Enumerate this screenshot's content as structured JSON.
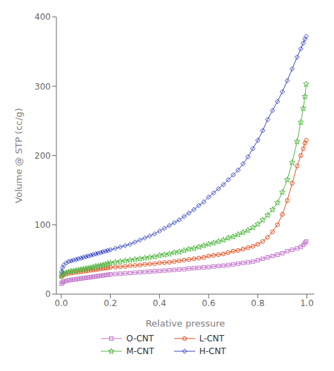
{
  "chart_data": {
    "type": "line",
    "xlabel": "Relative pressure",
    "ylabel": "Volume @ STP (cc/g)",
    "x": [
      0.001,
      0.005,
      0.01,
      0.02,
      0.03,
      0.04,
      0.05,
      0.06,
      0.07,
      0.08,
      0.09,
      0.1,
      0.11,
      0.12,
      0.13,
      0.14,
      0.15,
      0.16,
      0.17,
      0.18,
      0.19,
      0.2,
      0.22,
      0.24,
      0.26,
      0.28,
      0.3,
      0.32,
      0.34,
      0.36,
      0.38,
      0.4,
      0.42,
      0.44,
      0.46,
      0.48,
      0.5,
      0.52,
      0.54,
      0.56,
      0.58,
      0.6,
      0.62,
      0.64,
      0.66,
      0.68,
      0.7,
      0.72,
      0.74,
      0.76,
      0.78,
      0.8,
      0.82,
      0.84,
      0.86,
      0.88,
      0.9,
      0.92,
      0.94,
      0.96,
      0.975,
      0.985,
      0.992,
      0.997
    ],
    "xlim": [
      -0.02,
      1.03
    ],
    "xticks": [
      {
        "value": 0,
        "label": "0.0"
      },
      0.2,
      0.4,
      0.6,
      0.8,
      {
        "value": 1,
        "label": "1.0"
      }
    ],
    "ylim": [
      0,
      400
    ],
    "yticks": [
      0,
      100,
      200,
      300,
      400
    ],
    "grid": false,
    "legend": "bottom",
    "series": [
      {
        "name": "O-CNT",
        "color": "#c070c8",
        "marker": "square",
        "values": [
          15,
          17,
          18,
          19,
          20,
          20.5,
          21,
          21.5,
          22,
          22.5,
          23,
          23.5,
          24,
          24.5,
          25,
          25.5,
          26,
          26.5,
          27,
          27.5,
          28,
          28.5,
          29,
          29.5,
          30,
          30.5,
          31,
          31.5,
          32,
          32.5,
          33,
          33.5,
          34,
          34.5,
          35,
          35.5,
          36,
          37,
          37.5,
          38,
          38.5,
          39,
          40,
          40.5,
          41,
          42,
          43,
          44,
          45,
          46,
          47,
          49,
          51,
          53,
          55,
          57,
          59,
          62,
          64,
          66,
          68,
          71,
          74,
          76
        ]
      },
      {
        "name": "L-CNT",
        "color": "#e05020",
        "marker": "circle",
        "values": [
          25,
          27,
          28,
          29,
          30,
          30.5,
          31,
          31.5,
          32,
          32.5,
          33,
          33.5,
          34,
          34.5,
          35,
          35.5,
          36,
          36.5,
          37,
          37.5,
          38,
          38.5,
          39,
          39.5,
          40,
          41,
          41.5,
          42,
          43,
          43.5,
          44,
          45,
          45.5,
          46,
          47,
          48,
          49,
          50,
          51,
          52,
          53,
          55,
          56,
          57,
          58,
          60,
          62,
          63,
          65,
          67,
          69,
          72,
          76,
          82,
          90,
          100,
          115,
          135,
          160,
          185,
          200,
          210,
          218,
          222
        ]
      },
      {
        "name": "M-CNT",
        "color": "#50b840",
        "marker": "star",
        "values": [
          26,
          29,
          30,
          31,
          32,
          33,
          33.5,
          34,
          35,
          35.5,
          36,
          37,
          37.5,
          38,
          39,
          40,
          40.5,
          41,
          42,
          43,
          44,
          45,
          46,
          47,
          48,
          49,
          50,
          51,
          52,
          53,
          54,
          56,
          57,
          58,
          60,
          61,
          63,
          65,
          66,
          68,
          70,
          72,
          74,
          76,
          78,
          81,
          83,
          86,
          89,
          92,
          96,
          101,
          107,
          114,
          122,
          132,
          147,
          165,
          190,
          220,
          248,
          268,
          285,
          303
        ]
      },
      {
        "name": "H-CNT",
        "color": "#3848c0",
        "marker": "diamond",
        "values": [
          32,
          38,
          42,
          45,
          47,
          48,
          49,
          50,
          51,
          52,
          53,
          54,
          55,
          56,
          57,
          58,
          59,
          60,
          61,
          62,
          63,
          64,
          66,
          68,
          70,
          72,
          75,
          78,
          81,
          84,
          87,
          91,
          95,
          99,
          103,
          107,
          112,
          117,
          122,
          128,
          133,
          140,
          146,
          152,
          158,
          165,
          172,
          179,
          188,
          198,
          210,
          222,
          236,
          252,
          265,
          278,
          292,
          308,
          325,
          342,
          354,
          362,
          368,
          372
        ]
      }
    ]
  }
}
